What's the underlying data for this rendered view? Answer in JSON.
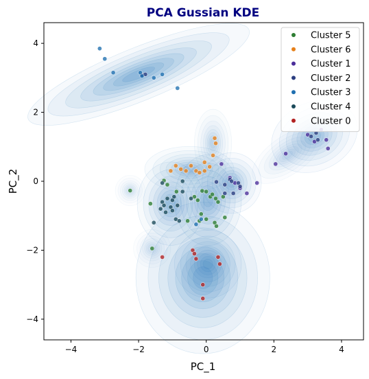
{
  "chart_data": {
    "type": "scatter",
    "title": "PCA Gussian KDE",
    "title_color": "#000080",
    "xlabel": "PC_1",
    "ylabel": "PC_2",
    "xlim": [
      -4.8,
      4.65
    ],
    "ylim": [
      -4.6,
      4.6
    ],
    "xticks": [
      -4,
      -2,
      0,
      2,
      4
    ],
    "yticks": [
      -4,
      -2,
      0,
      2,
      4
    ],
    "tick_labels_x": [
      "−4",
      "−2",
      "0",
      "2",
      "4"
    ],
    "tick_labels_y": [
      "−4",
      "−2",
      "0",
      "2",
      "4"
    ],
    "grid": false,
    "legend_position": "top-right",
    "kde_color": "#2f7fbf",
    "series": [
      {
        "name": "Cluster 5",
        "color": "#2e7d32",
        "points": [
          [
            -2.25,
            -0.27
          ],
          [
            -1.25,
            0.02
          ],
          [
            -1.15,
            -0.1
          ],
          [
            -0.88,
            -0.3
          ],
          [
            -0.35,
            -0.45
          ],
          [
            -0.25,
            -0.55
          ],
          [
            -0.12,
            -0.28
          ],
          [
            0.0,
            -0.3
          ],
          [
            0.12,
            -0.45
          ],
          [
            0.18,
            -0.38
          ],
          [
            0.28,
            -0.5
          ],
          [
            0.35,
            -0.6
          ],
          [
            0.5,
            -0.45
          ],
          [
            -0.15,
            -0.95
          ],
          [
            0.0,
            -1.1
          ],
          [
            0.25,
            -1.2
          ],
          [
            0.3,
            -1.3
          ],
          [
            0.55,
            -1.05
          ],
          [
            -0.2,
            -1.15
          ],
          [
            -0.55,
            -1.15
          ],
          [
            -1.65,
            -0.65
          ],
          [
            -1.6,
            -1.95
          ]
        ]
      },
      {
        "name": "Cluster 6",
        "color": "#e6801a",
        "points": [
          [
            -1.05,
            0.3
          ],
          [
            -0.9,
            0.45
          ],
          [
            -0.75,
            0.35
          ],
          [
            -0.6,
            0.3
          ],
          [
            -0.45,
            0.45
          ],
          [
            -0.3,
            0.3
          ],
          [
            -0.2,
            0.25
          ],
          [
            -0.05,
            0.3
          ],
          [
            0.1,
            0.42
          ],
          [
            0.2,
            0.75
          ],
          [
            0.25,
            1.25
          ],
          [
            0.28,
            1.1
          ],
          [
            -0.05,
            0.55
          ]
        ]
      },
      {
        "name": "Cluster 1",
        "color": "#4b2e9a",
        "points": [
          [
            0.45,
            0.5
          ],
          [
            0.7,
            0.1
          ],
          [
            0.85,
            -0.05
          ],
          [
            1.0,
            -0.2
          ],
          [
            1.2,
            -0.35
          ],
          [
            1.5,
            -0.05
          ],
          [
            2.05,
            0.5
          ],
          [
            2.35,
            0.8
          ],
          [
            3.0,
            1.35
          ],
          [
            3.2,
            1.15
          ],
          [
            3.4,
            1.5
          ],
          [
            3.55,
            1.2
          ],
          [
            3.6,
            0.95
          ]
        ]
      },
      {
        "name": "Cluster 2",
        "color": "#2c3e80",
        "points": [
          [
            0.3,
            -0.02
          ],
          [
            0.55,
            -0.1
          ],
          [
            0.7,
            0.05
          ],
          [
            0.75,
            0.0
          ],
          [
            0.95,
            -0.05
          ],
          [
            1.0,
            -0.15
          ],
          [
            0.8,
            -0.35
          ],
          [
            0.55,
            -0.35
          ],
          [
            3.1,
            1.3
          ],
          [
            3.25,
            1.4
          ],
          [
            3.3,
            1.2
          ],
          [
            -1.9,
            3.08
          ],
          [
            -1.8,
            3.1
          ]
        ]
      },
      {
        "name": "Cluster 3",
        "color": "#1f6fb0",
        "points": [
          [
            -3.15,
            3.85
          ],
          [
            -3.0,
            3.55
          ],
          [
            -2.75,
            3.15
          ],
          [
            -1.95,
            3.15
          ],
          [
            -1.9,
            3.05
          ],
          [
            -1.55,
            3.0
          ],
          [
            -1.3,
            3.1
          ],
          [
            -0.85,
            2.7
          ],
          [
            -0.3,
            -1.25
          ],
          [
            -0.15,
            -1.1
          ]
        ]
      },
      {
        "name": "Cluster 4",
        "color": "#1b4a5a",
        "points": [
          [
            -1.35,
            -0.8
          ],
          [
            -1.3,
            -0.6
          ],
          [
            -1.25,
            -0.7
          ],
          [
            -1.2,
            -0.9
          ],
          [
            -1.15,
            -0.5
          ],
          [
            -1.05,
            -0.75
          ],
          [
            -1.0,
            -0.85
          ],
          [
            -1.0,
            -0.55
          ],
          [
            -0.95,
            -0.45
          ],
          [
            -0.85,
            -0.7
          ],
          [
            -0.9,
            -1.1
          ],
          [
            -0.8,
            -1.15
          ],
          [
            -0.7,
            -0.3
          ],
          [
            -0.7,
            0.0
          ],
          [
            -0.45,
            -0.5
          ],
          [
            -1.3,
            -0.05
          ],
          [
            -1.55,
            -1.2
          ]
        ]
      },
      {
        "name": "Cluster 0",
        "color": "#b22222",
        "points": [
          [
            -1.3,
            -2.2
          ],
          [
            -0.4,
            -2.0
          ],
          [
            -0.3,
            -2.25
          ],
          [
            0.35,
            -2.2
          ],
          [
            0.4,
            -2.4
          ],
          [
            -0.1,
            -3.0
          ],
          [
            -0.1,
            -3.4
          ],
          [
            -0.35,
            -2.1
          ]
        ]
      }
    ],
    "kde_blobs": [
      {
        "cx": -2.0,
        "cy": 3.1,
        "sx": 1.6,
        "sy": 0.35,
        "rot": -22,
        "w": 1.0
      },
      {
        "cx": -0.1,
        "cy": -2.8,
        "sx": 0.9,
        "sy": 1.0,
        "rot": 0,
        "w": 1.0
      },
      {
        "cx": 0.05,
        "cy": -2.4,
        "sx": 0.45,
        "sy": 0.45,
        "rot": 0,
        "w": 0.8
      },
      {
        "cx": -1.05,
        "cy": -0.65,
        "sx": 0.45,
        "sy": 0.55,
        "rot": 0,
        "w": 0.9
      },
      {
        "cx": 0.05,
        "cy": -0.55,
        "sx": 0.45,
        "sy": 0.6,
        "rot": 0,
        "w": 0.9
      },
      {
        "cx": 0.75,
        "cy": -0.05,
        "sx": 0.4,
        "sy": 0.4,
        "rot": 0,
        "w": 0.8
      },
      {
        "cx": -0.5,
        "cy": 0.35,
        "sx": 0.6,
        "sy": 0.3,
        "rot": 0,
        "w": 0.7
      },
      {
        "cx": 0.2,
        "cy": 1.1,
        "sx": 0.25,
        "sy": 0.45,
        "rot": 0,
        "w": 0.5
      },
      {
        "cx": 3.2,
        "cy": 1.3,
        "sx": 0.6,
        "sy": 0.45,
        "rot": -25,
        "w": 0.8
      },
      {
        "cx": 2.4,
        "cy": 0.75,
        "sx": 0.55,
        "sy": 0.25,
        "rot": -35,
        "w": 0.4
      },
      {
        "cx": -2.25,
        "cy": -0.27,
        "sx": 0.2,
        "sy": 0.2,
        "rot": 0,
        "w": 0.35
      },
      {
        "cx": -1.6,
        "cy": -1.95,
        "sx": 0.25,
        "sy": 0.25,
        "rot": 0,
        "w": 0.35
      }
    ]
  }
}
